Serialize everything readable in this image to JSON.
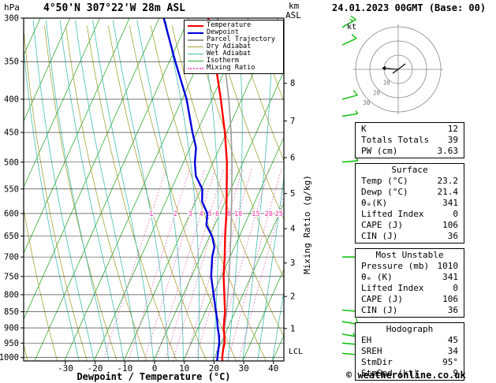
{
  "header": {
    "station_title": "4°50'N 307°22'W 28m ASL",
    "datetime_title": "24.01.2023 00GMT (Base: 00)"
  },
  "footer": {
    "copyright": "© weatheronline.co.uk"
  },
  "axes": {
    "pressure_unit": "hPa",
    "altitude_unit_line1": "km",
    "altitude_unit_line2": "ASL",
    "x_title": "Dewpoint / Temperature (°C)",
    "mixing_ratio_axis": "Mixing Ratio (g/kg)",
    "lcl_label": "LCL",
    "pressure_ticks": [
      300,
      350,
      400,
      450,
      500,
      550,
      600,
      650,
      700,
      750,
      800,
      850,
      900,
      950,
      1000
    ],
    "x_ticks": [
      -30,
      -20,
      -10,
      0,
      10,
      20,
      30,
      40
    ],
    "km_ticks": [
      {
        "km": 8,
        "p": 378
      },
      {
        "km": 7,
        "p": 432
      },
      {
        "km": 6,
        "p": 492
      },
      {
        "km": 5,
        "p": 559
      },
      {
        "km": 4,
        "p": 633
      },
      {
        "km": 3,
        "p": 715
      },
      {
        "km": 2,
        "p": 805
      },
      {
        "km": 1,
        "p": 902
      }
    ]
  },
  "colors": {
    "temperature": "#ff0000",
    "dewpoint": "#0000dd",
    "parcel": "#9a9a9a",
    "dry_adiabat": "#a8a23a",
    "wet_adiabat": "#45bdb0",
    "isotherm": "#33aa33",
    "mixing_ratio": "#ee66bb",
    "wind_barb": "#00bb00"
  },
  "legend": {
    "items": [
      {
        "label": "Temperature",
        "color": "#ff0000",
        "style": "solid",
        "width": 2
      },
      {
        "label": "Dewpoint",
        "color": "#0000dd",
        "style": "solid",
        "width": 2
      },
      {
        "label": "Parcel Trajectory",
        "color": "#9a9a9a",
        "style": "solid",
        "width": 2
      },
      {
        "label": "Dry Adiabat",
        "color": "#a8a23a",
        "style": "solid",
        "width": 1
      },
      {
        "label": "Wet Adiabat",
        "color": "#45bdb0",
        "style": "solid",
        "width": 1
      },
      {
        "label": "Isotherm",
        "color": "#33aa33",
        "style": "solid",
        "width": 1
      },
      {
        "label": "Mixing Ratio",
        "color": "#ee66bb",
        "style": "dotted",
        "width": 1
      }
    ]
  },
  "hodograph": {
    "unit_label": "kt",
    "rings_kt": [
      10,
      20,
      30
    ],
    "storm_motion": {
      "dir_deg": 95,
      "speed_kt": 9
    }
  },
  "stats_panel": {
    "sections": [
      {
        "header": null,
        "rows": [
          [
            "K",
            "12"
          ],
          [
            "Totals Totals",
            "39"
          ],
          [
            "PW (cm)",
            "3.63"
          ]
        ]
      },
      {
        "header": "Surface",
        "rows": [
          [
            "Temp (°C)",
            "23.2"
          ],
          [
            "Dewp (°C)",
            "21.4"
          ],
          [
            "θₑ(K)",
            "341"
          ],
          [
            "Lifted Index",
            "0"
          ],
          [
            "CAPE (J)",
            "106"
          ],
          [
            "CIN (J)",
            "36"
          ]
        ]
      },
      {
        "header": "Most Unstable",
        "rows": [
          [
            "Pressure (mb)",
            "1010"
          ],
          [
            "θₑ (K)",
            "341"
          ],
          [
            "Lifted Index",
            "0"
          ],
          [
            "CAPE (J)",
            "106"
          ],
          [
            "CIN (J)",
            "36"
          ]
        ]
      },
      {
        "header": "Hodograph",
        "rows": [
          [
            "EH",
            "45"
          ],
          [
            "SREH",
            "34"
          ],
          [
            "StmDir",
            "95°"
          ],
          [
            "StmSpd (kt)",
            "9"
          ]
        ]
      }
    ]
  },
  "chart_data": {
    "type": "line",
    "title": "Skew-T log-P sounding 4°50'N 307°22'W 28m ASL 24.01.2023 00GMT",
    "xlabel": "Dewpoint / Temperature (°C)",
    "ylabel": "hPa",
    "x_range": [
      -40,
      40
    ],
    "pressure_range": [
      1012,
      300
    ],
    "pressure_scale": "log",
    "lcl_pressure": 978,
    "mixing_ratio_lines": [
      1,
      2,
      3,
      4,
      5,
      6,
      8,
      10,
      15,
      20,
      25
    ],
    "series": [
      {
        "name": "Parcel Trajectory",
        "color": "#9a9a9a",
        "width": 1.6,
        "points": [
          [
            1012,
            23.2
          ],
          [
            978,
            21.8
          ],
          [
            950,
            20.8
          ],
          [
            925,
            19.8
          ],
          [
            900,
            18.9
          ],
          [
            850,
            17.1
          ],
          [
            800,
            15.0
          ],
          [
            750,
            12.6
          ],
          [
            700,
            10.0
          ],
          [
            650,
            7.1
          ],
          [
            600,
            3.9
          ],
          [
            550,
            0.3
          ],
          [
            500,
            -3.7
          ],
          [
            450,
            -8.5
          ],
          [
            400,
            -14.3
          ],
          [
            350,
            -21.5
          ],
          [
            300,
            -30.4
          ]
        ]
      },
      {
        "name": "Dewpoint",
        "color": "#0000dd",
        "width": 2.4,
        "points": [
          [
            1012,
            21.4
          ],
          [
            1000,
            21.0
          ],
          [
            975,
            20.2
          ],
          [
            950,
            19.4
          ],
          [
            925,
            18.2
          ],
          [
            900,
            16.6
          ],
          [
            875,
            15.2
          ],
          [
            850,
            13.6
          ],
          [
            800,
            10.2
          ],
          [
            750,
            6.6
          ],
          [
            700,
            4.0
          ],
          [
            675,
            3.2
          ],
          [
            650,
            0.8
          ],
          [
            625,
            -2.8
          ],
          [
            600,
            -4.2
          ],
          [
            575,
            -7.8
          ],
          [
            550,
            -9.6
          ],
          [
            525,
            -13.8
          ],
          [
            500,
            -16.2
          ],
          [
            475,
            -18.0
          ],
          [
            450,
            -21.5
          ],
          [
            400,
            -28.5
          ],
          [
            350,
            -38.0
          ],
          [
            300,
            -48.5
          ]
        ]
      },
      {
        "name": "Temperature",
        "color": "#ff0000",
        "width": 2.4,
        "points": [
          [
            1012,
            23.2
          ],
          [
            1000,
            22.6
          ],
          [
            975,
            21.8
          ],
          [
            950,
            21.2
          ],
          [
            925,
            20.0
          ],
          [
            900,
            18.6
          ],
          [
            875,
            17.6
          ],
          [
            850,
            16.6
          ],
          [
            800,
            13.8
          ],
          [
            750,
            10.8
          ],
          [
            700,
            8.2
          ],
          [
            650,
            5.2
          ],
          [
            600,
            2.2
          ],
          [
            550,
            -1.4
          ],
          [
            500,
            -5.4
          ],
          [
            450,
            -10.6
          ],
          [
            400,
            -17.0
          ],
          [
            350,
            -24.6
          ],
          [
            300,
            -33.5
          ]
        ]
      }
    ],
    "wind_barbs": [
      {
        "p": 310,
        "speed_kt": 15,
        "dir_deg": 60
      },
      {
        "p": 330,
        "speed_kt": 10,
        "dir_deg": 65
      },
      {
        "p": 400,
        "speed_kt": 10,
        "dir_deg": 75
      },
      {
        "p": 425,
        "speed_kt": 5,
        "dir_deg": 80
      },
      {
        "p": 500,
        "speed_kt": 10,
        "dir_deg": 85
      },
      {
        "p": 700,
        "speed_kt": 10,
        "dir_deg": 90
      },
      {
        "p": 845,
        "speed_kt": 10,
        "dir_deg": 95
      },
      {
        "p": 880,
        "speed_kt": 10,
        "dir_deg": 100
      },
      {
        "p": 920,
        "speed_kt": 15,
        "dir_deg": 100
      },
      {
        "p": 950,
        "speed_kt": 10,
        "dir_deg": 95
      },
      {
        "p": 985,
        "speed_kt": 10,
        "dir_deg": 95
      }
    ]
  }
}
